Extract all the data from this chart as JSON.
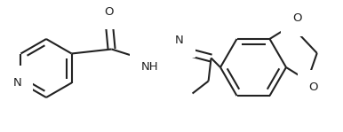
{
  "bg_color": "#ffffff",
  "line_color": "#222222",
  "line_width": 1.5,
  "figsize": [
    3.86,
    1.49
  ],
  "dpi": 100,
  "xlim": [
    0,
    386
  ],
  "ylim": [
    0,
    149
  ]
}
